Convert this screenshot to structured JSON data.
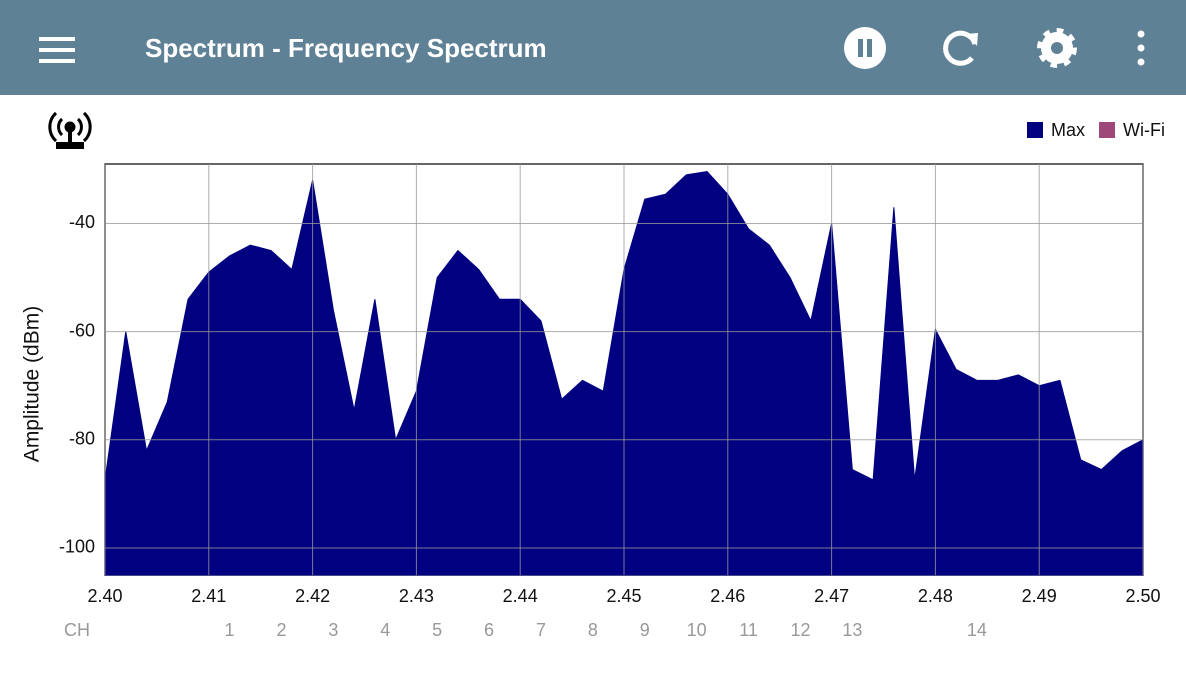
{
  "header": {
    "title": "Spectrum - Frequency Spectrum"
  },
  "chart_data": {
    "type": "area",
    "ylabel": "Amplitude (dBm)",
    "xlim": [
      2.4,
      2.5
    ],
    "xticks": [
      {
        "value": 2.4,
        "label": "2.40"
      },
      2.41,
      2.42,
      2.43,
      2.44,
      2.45,
      2.46,
      2.47,
      2.48,
      2.49,
      {
        "value": 2.5,
        "label": "2.50"
      }
    ],
    "ylim": [
      -105,
      -29
    ],
    "yticks": [
      -40,
      -60,
      -80,
      -100
    ],
    "grid": true,
    "legend": [
      {
        "name": "Max",
        "color": "#000080"
      },
      {
        "name": "Wi-Fi",
        "color": "#a0477a"
      }
    ],
    "channels": {
      "label": "CH",
      "items": [
        {
          "label": "1",
          "freq": 2.412
        },
        {
          "label": "2",
          "freq": 2.417
        },
        {
          "label": "3",
          "freq": 2.422
        },
        {
          "label": "4",
          "freq": 2.427
        },
        {
          "label": "5",
          "freq": 2.432
        },
        {
          "label": "6",
          "freq": 2.437
        },
        {
          "label": "7",
          "freq": 2.442
        },
        {
          "label": "8",
          "freq": 2.447
        },
        {
          "label": "9",
          "freq": 2.452
        },
        {
          "label": "10",
          "freq": 2.457
        },
        {
          "label": "11",
          "freq": 2.462
        },
        {
          "label": "12",
          "freq": 2.467
        },
        {
          "label": "13",
          "freq": 2.472
        },
        {
          "label": "14",
          "freq": 2.484
        }
      ]
    },
    "x": [
      2.4,
      2.402,
      2.404,
      2.406,
      2.408,
      2.41,
      2.412,
      2.414,
      2.416,
      2.418,
      2.42,
      2.422,
      2.424,
      2.426,
      2.428,
      2.43,
      2.432,
      2.434,
      2.436,
      2.438,
      2.44,
      2.442,
      2.444,
      2.446,
      2.448,
      2.45,
      2.452,
      2.454,
      2.456,
      2.458,
      2.46,
      2.462,
      2.464,
      2.466,
      2.468,
      2.47,
      2.472,
      2.474,
      2.476,
      2.478,
      2.48,
      2.482,
      2.484,
      2.486,
      2.488,
      2.49,
      2.492,
      2.494,
      2.496,
      2.498,
      2.5
    ],
    "series": [
      {
        "name": "Max",
        "color": "#000080",
        "values": [
          -87.4,
          -60,
          -82,
          -73,
          -54,
          -49,
          -46,
          -44,
          -45,
          -48.5,
          -32,
          -56,
          -74.5,
          -54,
          -80,
          -71,
          -50,
          -45,
          -48.5,
          -54,
          -54,
          -58,
          -72.5,
          -69,
          -71,
          -48.5,
          -35.5,
          -34.6,
          -31,
          -30.4,
          -34.6,
          -41,
          -44,
          -50,
          -58,
          -40,
          -85.5,
          -87.4,
          -37,
          -87.4,
          -59.6,
          -67,
          -69,
          -69,
          -68,
          -70,
          -69,
          -83.7,
          -85.5,
          -82,
          -80
        ]
      }
    ]
  }
}
